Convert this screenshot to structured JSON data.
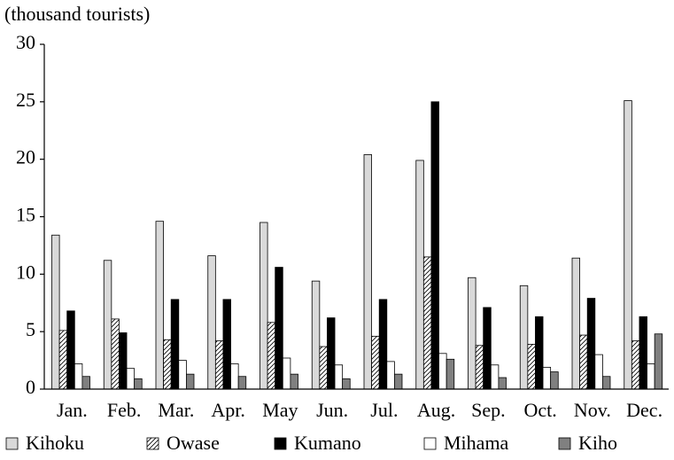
{
  "chart_data": {
    "type": "bar",
    "y_label": "(thousand tourists)",
    "categories": [
      "Jan.",
      "Feb.",
      "Mar.",
      "Apr.",
      "May",
      "Jun.",
      "Jul.",
      "Aug.",
      "Sep.",
      "Oct.",
      "Nov.",
      "Dec."
    ],
    "series": [
      {
        "name": "Kihoku",
        "color": "#d9d9d9",
        "values": [
          13.4,
          11.2,
          14.6,
          11.6,
          14.5,
          9.4,
          20.4,
          19.9,
          9.7,
          9.0,
          11.4,
          25.1
        ]
      },
      {
        "name": "Owase",
        "color": "#ffffff",
        "hatch": true,
        "values": [
          5.1,
          6.1,
          4.3,
          4.2,
          5.8,
          3.7,
          4.6,
          11.5,
          3.8,
          3.9,
          4.7,
          4.2
        ]
      },
      {
        "name": "Kumano",
        "color": "#000000",
        "values": [
          6.8,
          4.9,
          7.8,
          7.8,
          10.6,
          6.2,
          7.8,
          25.0,
          7.1,
          6.3,
          7.9,
          6.3
        ]
      },
      {
        "name": "Mihama",
        "color": "#ffffff",
        "values": [
          2.2,
          1.8,
          2.5,
          2.2,
          2.7,
          2.1,
          2.4,
          3.1,
          2.1,
          1.9,
          3.0,
          2.2
        ]
      },
      {
        "name": "Kiho",
        "color": "#808080",
        "values": [
          1.1,
          0.9,
          1.3,
          1.1,
          1.3,
          0.9,
          1.3,
          2.6,
          1.0,
          1.5,
          1.1,
          4.8
        ]
      }
    ],
    "ylim": [
      0,
      30
    ],
    "yticks": [
      0,
      5,
      10,
      15,
      20,
      25,
      30
    ],
    "grid": false,
    "legend": "bottom"
  }
}
